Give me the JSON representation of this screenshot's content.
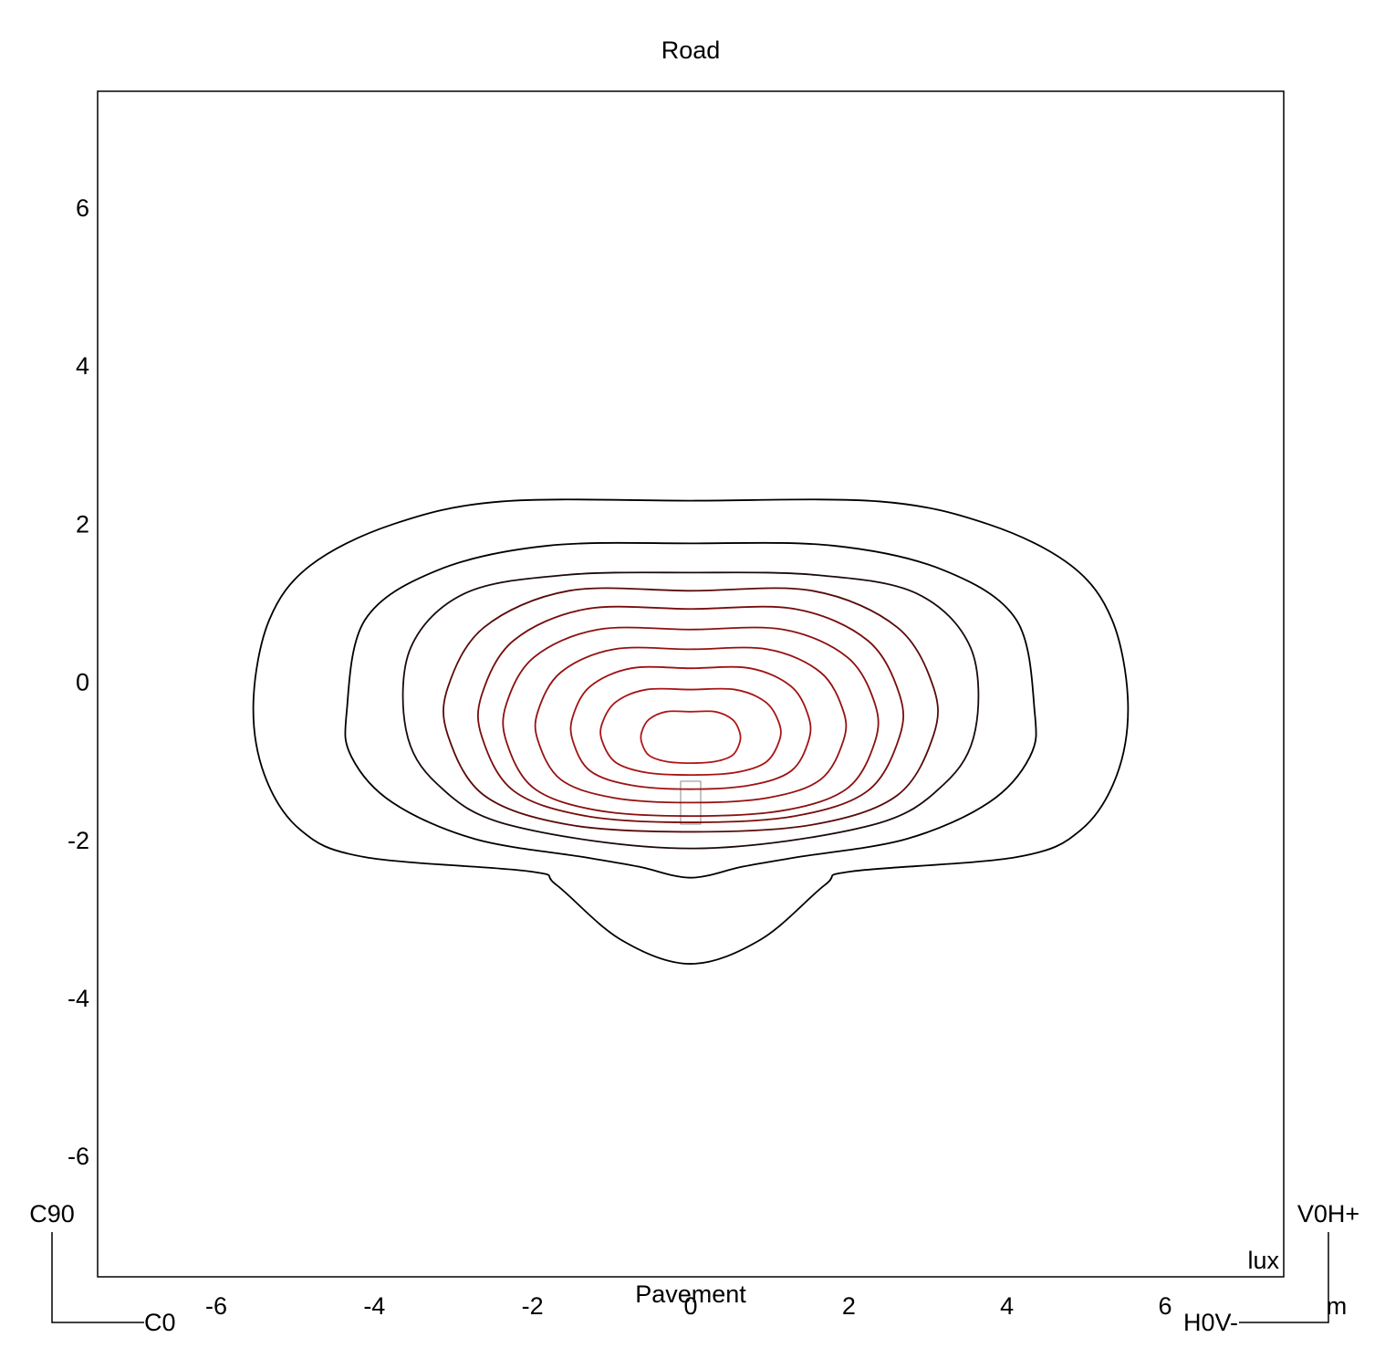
{
  "chart_data": {
    "type": "contour",
    "title": "Road",
    "xlabel": "Pavement",
    "unit_label": "lux",
    "xlim": [
      -7.5,
      7.5
    ],
    "ylim": [
      -7.5,
      7.5
    ],
    "xticks": [
      -6,
      -4,
      -2,
      0,
      2,
      4,
      6
    ],
    "yticks": [
      -6,
      -4,
      -2,
      0,
      2,
      4,
      6
    ],
    "orientation_labels": {
      "top_left": "C90",
      "bottom_left": "C0",
      "top_right": "V0H+",
      "bottom_right": "H0V-",
      "unit": "m"
    },
    "contours": [
      {
        "color": "#000000",
        "x": [
          0,
          -2.39,
          -3.77,
          -4.81,
          -5.33,
          -5.53,
          -5.39,
          -4.93,
          -4.12,
          -2.04,
          -1.7,
          -0.89,
          0,
          0.89,
          1.7,
          2.04,
          4.12,
          4.93,
          5.39,
          5.53,
          5.33,
          4.81,
          3.77,
          2.39
        ],
        "y": [
          2.32,
          2.31,
          2.02,
          1.5,
          0.81,
          -0.23,
          -1.15,
          -1.85,
          -2.19,
          -2.37,
          -2.54,
          -3.23,
          -3.54,
          -3.23,
          -2.54,
          -2.37,
          -2.19,
          -1.85,
          -1.15,
          -0.23,
          0.81,
          1.5,
          2.02,
          2.31
        ]
      },
      {
        "color": "#000000",
        "x": [
          0,
          -1.81,
          -3.2,
          -4.12,
          -4.35,
          -4.29,
          -3.77,
          -2.73,
          -1.35,
          -0.66,
          0,
          0.66,
          1.35,
          2.73,
          3.77,
          4.29,
          4.35,
          4.12,
          3.2,
          1.81
        ],
        "y": [
          1.78,
          1.75,
          1.44,
          0.81,
          -0.35,
          -0.92,
          -1.5,
          -1.96,
          -2.19,
          -2.31,
          -2.45,
          -2.31,
          -2.19,
          -1.96,
          -1.5,
          -0.92,
          -0.35,
          0.81,
          1.44,
          1.75
        ]
      },
      {
        "color": "#1a0a0a",
        "x": [
          0,
          -1.58,
          -2.85,
          -3.54,
          -3.6,
          -3.2,
          -2.27,
          0,
          2.27,
          3.2,
          3.6,
          3.54,
          2.85,
          1.58
        ],
        "y": [
          1.41,
          1.38,
          1.15,
          0.46,
          -0.58,
          -1.27,
          -1.79,
          -2.08,
          -1.79,
          -1.27,
          -0.58,
          0.46,
          1.15,
          1.38
        ]
      },
      {
        "color": "#5a0a0a",
        "x": [
          0,
          -1.54,
          -2.61,
          -3.07,
          -3.07,
          -2.61,
          -1.54,
          0,
          1.54,
          2.61,
          3.07,
          3.07,
          2.61,
          1.54
        ],
        "y": [
          1.18,
          1.18,
          0.72,
          -0.04,
          -0.65,
          -1.41,
          -1.78,
          -1.87,
          -1.78,
          -1.41,
          -0.65,
          -0.04,
          0.72,
          1.18
        ]
      },
      {
        "color": "#7a0c0c",
        "x": [
          0,
          -1.32,
          -2.24,
          -2.64,
          -2.64,
          -2.24,
          -1.32,
          0,
          1.32,
          2.24,
          2.64,
          2.64,
          2.24,
          1.32
        ],
        "y": [
          0.95,
          0.95,
          0.55,
          -0.13,
          -0.67,
          -1.35,
          -1.67,
          -1.75,
          -1.67,
          -1.35,
          -0.67,
          -0.13,
          0.55,
          0.95
        ]
      },
      {
        "color": "#8b0f0f",
        "x": [
          0,
          -1.17,
          -1.98,
          -2.33,
          -2.33,
          -1.98,
          -1.17,
          0,
          1.17,
          1.98,
          2.33,
          2.33,
          1.98,
          1.17
        ],
        "y": [
          0.69,
          0.69,
          0.34,
          -0.25,
          -0.73,
          -1.32,
          -1.6,
          -1.67,
          -1.6,
          -1.32,
          -0.73,
          -0.25,
          0.34,
          0.69
        ]
      },
      {
        "color": "#961010",
        "x": [
          0,
          -0.97,
          -1.64,
          -1.93,
          -1.93,
          -1.64,
          -0.97,
          0,
          0.97,
          1.64,
          1.93,
          1.93,
          1.64,
          0.97
        ],
        "y": [
          0.44,
          0.44,
          0.15,
          -0.34,
          -0.72,
          -1.21,
          -1.44,
          -1.5,
          -1.44,
          -1.21,
          -0.72,
          -0.34,
          0.15,
          0.44
        ]
      },
      {
        "color": "#a01212",
        "x": [
          0,
          -0.75,
          -1.27,
          -1.49,
          -1.49,
          -1.27,
          -0.75,
          0,
          0.75,
          1.27,
          1.49,
          1.49,
          1.27,
          0.75
        ],
        "y": [
          0.2,
          0.2,
          -0.03,
          -0.41,
          -0.72,
          -1.1,
          -1.28,
          -1.33,
          -1.28,
          -1.1,
          -0.72,
          -0.41,
          -0.03,
          0.2
        ]
      },
      {
        "color": "#a81414",
        "x": [
          0,
          -0.56,
          -0.95,
          -1.12,
          -1.12,
          -0.95,
          -0.56,
          0,
          0.56,
          0.95,
          1.12,
          1.12,
          0.95,
          0.56
        ],
        "y": [
          -0.07,
          -0.07,
          -0.23,
          -0.5,
          -0.72,
          -0.99,
          -1.12,
          -1.15,
          -1.12,
          -0.99,
          -0.72,
          -0.5,
          -0.23,
          -0.07
        ]
      },
      {
        "color": "#b01616",
        "x": [
          0,
          -0.31,
          -0.53,
          -0.62,
          -0.62,
          -0.53,
          -0.31,
          0,
          0.31,
          0.53,
          0.62,
          0.62,
          0.53,
          0.31
        ],
        "y": [
          -0.35,
          -0.35,
          -0.45,
          -0.61,
          -0.74,
          -0.9,
          -0.98,
          -1.0,
          -0.98,
          -0.9,
          -0.74,
          -0.61,
          -0.45,
          -0.35
        ]
      }
    ]
  }
}
